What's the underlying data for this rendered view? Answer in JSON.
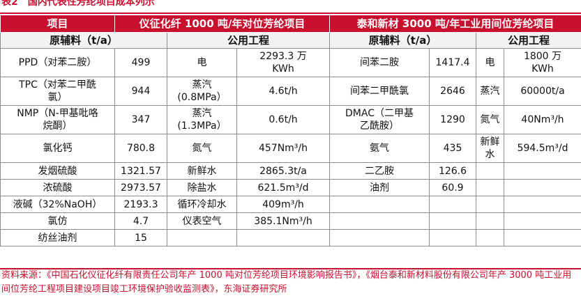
{
  "caption": {
    "number": "表2",
    "title": "国内代表性芳纶项目成本列示"
  },
  "header": {
    "item": "项目",
    "projectA": "仪征化纤 1000 吨/年对位芳纶项目",
    "projectB": "泰和新材 3000 吨/年工业用间位芳纶项目"
  },
  "subheader": {
    "raw": "原辅料（t/a）",
    "util": "公用工程"
  },
  "rows": [
    {
      "a1": "PPD（对苯二胺）",
      "a2": "499",
      "a3": "电",
      "a4": "2293.3 万\nKWh",
      "b1": "间苯二胺",
      "b2": "1417.4",
      "b3": "电",
      "b4": "1800 万\nKWh"
    },
    {
      "a1": "TPC（对苯二甲酰\n氯）",
      "a2": "944",
      "a3": "蒸汽\n(0.8MPa）",
      "a4": "4.6t/h",
      "b1": "间苯二甲酰氯",
      "b2": "2646",
      "b3": "蒸汽",
      "b4": "60000t/a"
    },
    {
      "a1": "NMP（N-甲基吡咯\n烷酮）",
      "a2": "347",
      "a3": "蒸汽\n(1.3MPa）",
      "a4": "0.6t/h",
      "b1": "DMAC（二甲基\n乙酰胺）",
      "b2": "1290",
      "b3": "氮气",
      "b4": "40Nm³/h"
    },
    {
      "a1": "氯化钙",
      "a2": "780.8",
      "a3": "氮气",
      "a4": "457Nm³/h",
      "b1": "氨气",
      "b2": "435",
      "b3": "新鲜\n水",
      "b4": "594.5m³/d"
    },
    {
      "a1": "发烟硫酸",
      "a2": "1321.57",
      "a3": "新鲜水",
      "a4": "2865.3t/a",
      "b1": "二乙胺",
      "b2": "126.6",
      "b3": "",
      "b4": ""
    },
    {
      "a1": "浓硫酸",
      "a2": "2973.57",
      "a3": "除盐水",
      "a4": "621.5m³/d",
      "b1": "油剂",
      "b2": "60.9",
      "b3": "",
      "b4": ""
    },
    {
      "a1": "液碱（32%NaOH）",
      "a2": "2193.3",
      "a3": "循环冷却水",
      "a4": "409m³/h",
      "b1": "",
      "b2": "",
      "b3": "",
      "b4": ""
    },
    {
      "a1": "氯仿",
      "a2": "4.7",
      "a3": "仪表空气",
      "a4": "385.1Nm³/h",
      "b1": "",
      "b2": "",
      "b3": "",
      "b4": ""
    },
    {
      "a1": "纺丝油剂",
      "a2": "15",
      "a3": "",
      "a4": "",
      "b1": "",
      "b2": "",
      "b3": "",
      "b4": ""
    }
  ],
  "footer": "资料来源：《中国石化仪征化纤有限责任公司年产 1000 吨对位芳纶项目环境影响报告书》，《烟台泰和新材料股份有限公司年产 3000 吨工业用间位芳纶工程项目建设项目竣工环境保护验收监测表》，东海证券研究所",
  "colors": {
    "accent": "#c8102e",
    "subheader_bg": "#f2f2f2",
    "border": "#8c8c8c"
  }
}
